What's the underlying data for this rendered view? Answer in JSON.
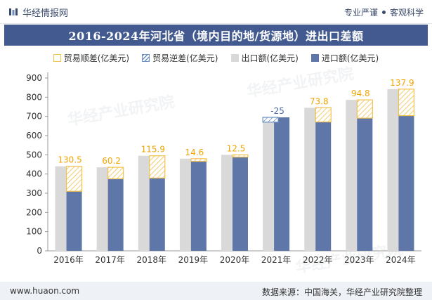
{
  "header": {
    "brand": "华经情报网",
    "tagline_1": "专业严谨",
    "tagline_2": "客观科学"
  },
  "title": "2016-2024年河北省（境内目的地/货源地）进出口差额",
  "legend": [
    {
      "key": "surplus",
      "label": "贸易顺差(亿美元)"
    },
    {
      "key": "deficit",
      "label": "贸易逆差(亿美元)"
    },
    {
      "key": "export",
      "label": "出口额(亿美元)"
    },
    {
      "key": "import",
      "label": "进口额(亿美元)"
    }
  ],
  "watermark": "华经产业研究院",
  "footer": {
    "url": "www.huaon.com",
    "source": "数据来源：中国海关，华经产业研究院整理"
  },
  "colors": {
    "surplus": "#f2c14e",
    "deficit": "#6b8fc4",
    "export": "#d9d9d9",
    "import": "#5f76a8",
    "label": "#f0a500",
    "label_negative": "#4a6aa5"
  },
  "chart_data": {
    "type": "bar",
    "categories": [
      "2016年",
      "2017年",
      "2018年",
      "2019年",
      "2020年",
      "2021年",
      "2022年",
      "2023年",
      "2024年"
    ],
    "series": [
      {
        "name": "出口额(亿美元)",
        "values": [
          440,
          435,
          495,
          480,
          500,
          670,
          745,
          786,
          842
        ]
      },
      {
        "name": "进口额(亿美元)",
        "values": [
          310,
          375,
          379,
          466,
          488,
          695,
          671,
          691,
          704
        ]
      }
    ],
    "balance": [
      130.5,
      60.2,
      115.9,
      14.6,
      12.5,
      -25,
      73.8,
      94.8,
      137.9
    ],
    "balance_labels": [
      "130.5",
      "60.2",
      "115.9",
      "14.6",
      "12.5",
      "-25",
      "73.8",
      "94.8",
      "137.9"
    ],
    "ylim": [
      0,
      900
    ],
    "yticks": [
      0,
      100,
      200,
      300,
      400,
      500,
      600,
      700,
      800,
      900
    ],
    "grid": false,
    "legend_position": "top"
  }
}
